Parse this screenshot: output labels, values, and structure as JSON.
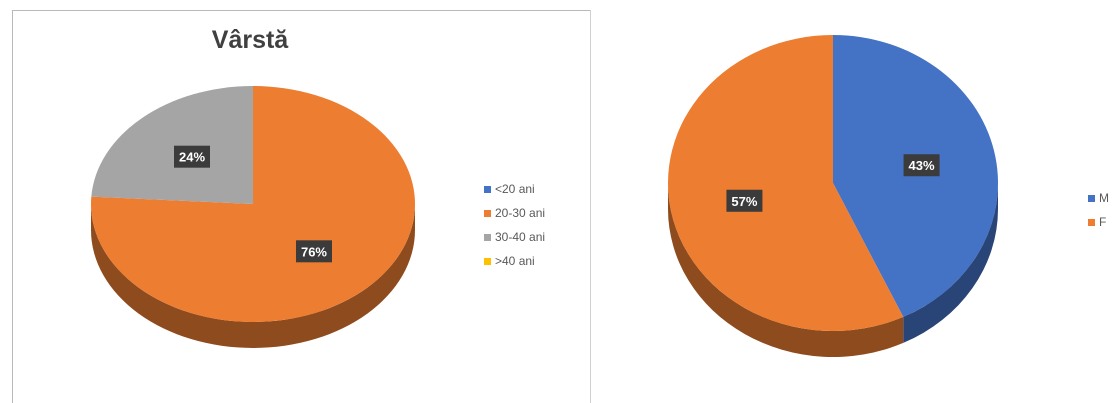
{
  "chart_data": [
    {
      "type": "pie",
      "title": "Vârstă",
      "categories": [
        "<20 ani",
        "20-30 ani",
        "30-40 ani",
        ">40 ani"
      ],
      "values": [
        0,
        76,
        24,
        0
      ],
      "data_labels": [
        "",
        "76%",
        "24%",
        ""
      ],
      "colors": [
        "#4472c4",
        "#ed7d31",
        "#a5a5a5",
        "#ffc000"
      ],
      "legend_position": "right",
      "style": "3d"
    },
    {
      "type": "pie",
      "title": "",
      "categories": [
        "M",
        "F"
      ],
      "values": [
        43,
        57
      ],
      "data_labels": [
        "43%",
        "57%"
      ],
      "colors": [
        "#4472c4",
        "#ed7d31"
      ],
      "legend_position": "right",
      "style": "3d"
    }
  ]
}
